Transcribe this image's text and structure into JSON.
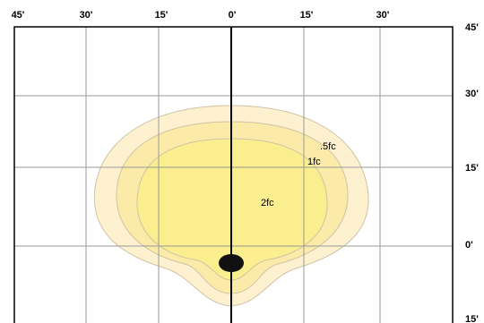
{
  "top_labels": [
    "45'",
    "30'",
    "15'",
    "0'",
    "15'",
    "30'"
  ],
  "right_labels": [
    "45'",
    "30'",
    "15'",
    "0'",
    "15'"
  ],
  "contours": [
    ".5fc",
    "1fc",
    "2fc"
  ]
}
